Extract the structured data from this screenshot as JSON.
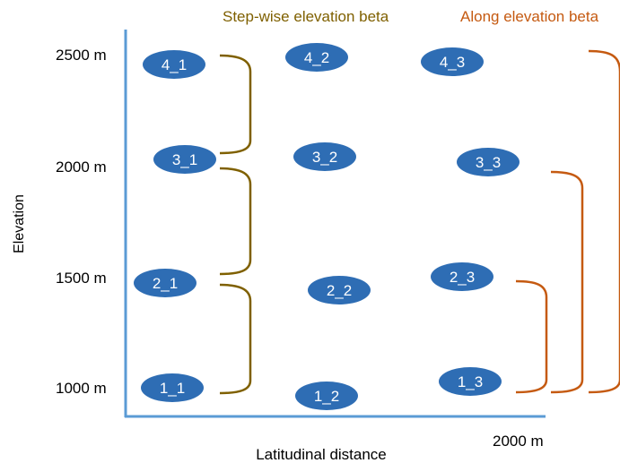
{
  "titles": {
    "step_wise": "Step-wise elevation beta",
    "along": "Along elevation beta"
  },
  "axes": {
    "y_label": "Elevation",
    "x_label": "Latitudinal distance",
    "y_ticks": [
      "2500 m",
      "2000 m",
      "1500 m",
      "1000 m"
    ],
    "x_tick": "2000 m"
  },
  "plots": [
    {
      "id": "4_1",
      "label": "4_1"
    },
    {
      "id": "4_2",
      "label": "4_2"
    },
    {
      "id": "4_3",
      "label": "4_3"
    },
    {
      "id": "3_1",
      "label": "3_1"
    },
    {
      "id": "3_2",
      "label": "3_2"
    },
    {
      "id": "3_3",
      "label": "3_3"
    },
    {
      "id": "2_1",
      "label": "2_1"
    },
    {
      "id": "2_2",
      "label": "2_2"
    },
    {
      "id": "2_3",
      "label": "2_3"
    },
    {
      "id": "1_1",
      "label": "1_1"
    },
    {
      "id": "1_2",
      "label": "1_2"
    },
    {
      "id": "1_3",
      "label": "1_3"
    }
  ],
  "colors": {
    "axis": "#5b9bd5",
    "node_fill": "#2e6db4",
    "node_text": "#ffffff",
    "step_wise": "#7f6000",
    "along": "#c55a11",
    "text": "#000000"
  }
}
